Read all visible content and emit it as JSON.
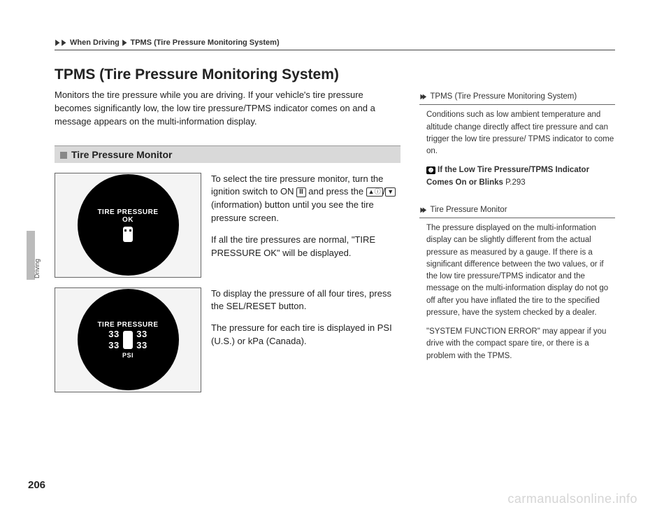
{
  "breadcrumb": {
    "seg1": "When Driving",
    "seg2": "TPMS (Tire Pressure Monitoring System)"
  },
  "title": "TPMS (Tire Pressure Monitoring System)",
  "intro": "Monitors the tire pressure while you are driving. If your vehicle's tire pressure becomes significantly low, the low tire pressure/TPMS indicator comes on and a message appears on the multi-information display.",
  "subhead": "Tire Pressure Monitor",
  "gauge1": {
    "line1": "TIRE PRESSURE",
    "line2": "OK"
  },
  "gauge2": {
    "title": "TIRE PRESSURE",
    "fl": "33",
    "fr": "33",
    "rl": "33",
    "rr": "33",
    "unit": "PSI"
  },
  "block1": {
    "p1a": "To select the tire pressure monitor, turn the ignition switch to ON ",
    "p1_on": "II",
    "p1b": " and press the ",
    "p1_arrow_up": "▲ⓘ",
    "p1_slash": "/",
    "p1_arrow_dn": "▼",
    "p1c": " (information) button until you see the tire pressure screen.",
    "p2": "If all the tire pressures are normal, \"TIRE PRESSURE OK\" will be displayed."
  },
  "block2": {
    "p1": "To display the pressure of all four tires, press the SEL/RESET button.",
    "p2": "The pressure for each tire is displayed in PSI (U.S.) or kPa (Canada)."
  },
  "side1": {
    "head": "TPMS (Tire Pressure Monitoring System)",
    "p1": "Conditions such as low ambient temperature and altitude change directly affect tire pressure and can trigger the low tire pressure/ TPMS indicator to come on.",
    "ref_icon": "➋",
    "ref_text": "If the Low Tire Pressure/TPMS Indicator Comes On or Blinks",
    "ref_page": " P.293"
  },
  "side2": {
    "head": "Tire Pressure Monitor",
    "p1": "The pressure displayed on the multi-information display can be slightly different from the actual pressure as measured by a gauge. If there is a significant difference between the two values, or if the low tire pressure/TPMS indicator and the message on the multi-information display do not go off after you have inflated the tire to the specified pressure, have the system checked by a dealer.",
    "p2": "\"SYSTEM FUNCTION ERROR\" may appear if you drive with the compact spare tire, or there is a problem with the TPMS."
  },
  "page_number": "206",
  "side_tab_label": "Driving",
  "watermark": "carmanualsonline.info"
}
